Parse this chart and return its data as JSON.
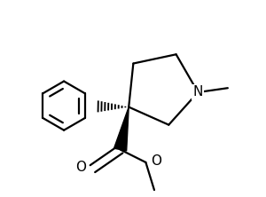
{
  "background_color": "#ffffff",
  "line_color": "#000000",
  "line_width": 1.6,
  "fig_width": 3.0,
  "fig_height": 2.22,
  "dpi": 100,
  "N_label": "N",
  "O1_label": "O",
  "O2_label": "O",
  "Me_N_label": "",
  "Me_O_label": ""
}
